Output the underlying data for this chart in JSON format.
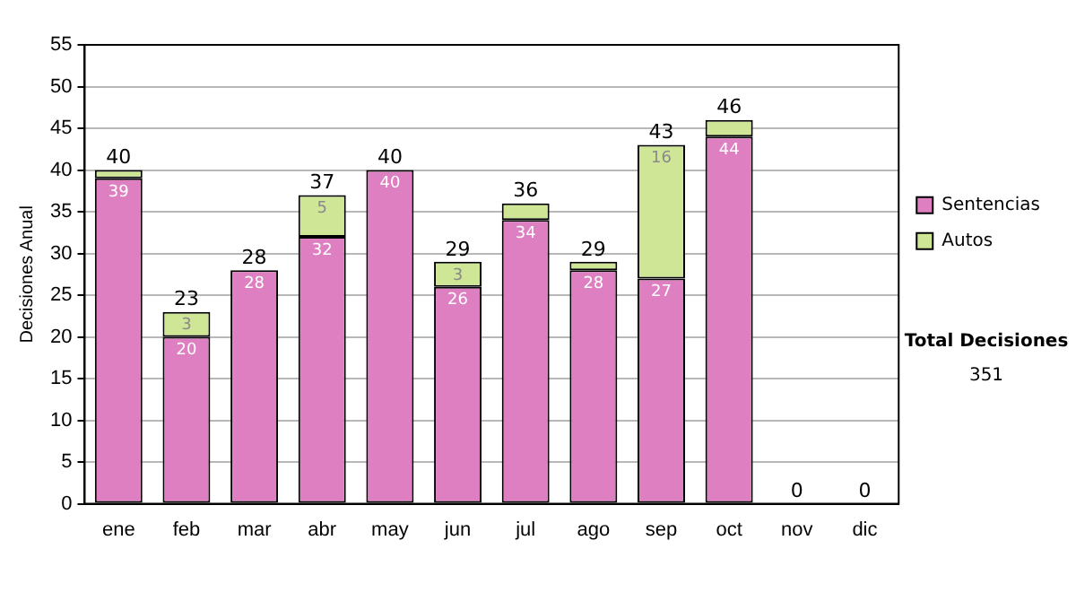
{
  "chart_data": {
    "type": "bar",
    "stacked": true,
    "ylabel": "Decisiones Anual",
    "categories": [
      "ene",
      "feb",
      "mar",
      "abr",
      "may",
      "jun",
      "jul",
      "ago",
      "sep",
      "oct",
      "nov",
      "dic"
    ],
    "series": [
      {
        "name": "Sentencias",
        "color": "#dd7fc0",
        "values": [
          39,
          20,
          28,
          32,
          40,
          26,
          34,
          28,
          27,
          44,
          0,
          0
        ],
        "value_labels": [
          "39",
          "20",
          "28",
          "32",
          "40",
          "26",
          "34",
          "28",
          "27",
          "44",
          null,
          null
        ]
      },
      {
        "name": "Autos",
        "color": "#cfe697",
        "values": [
          1,
          3,
          0,
          5,
          0,
          3,
          2,
          1,
          16,
          2,
          0,
          0
        ],
        "value_labels": [
          null,
          "3",
          null,
          "5",
          null,
          "3",
          null,
          null,
          "16",
          null,
          null,
          null
        ]
      }
    ],
    "totals": [
      "40",
      "23",
      "28",
      "37",
      "40",
      "29",
      "36",
      "29",
      "43",
      "46",
      "0",
      "0"
    ],
    "ylim": [
      0,
      55
    ],
    "yticks": [
      0,
      5,
      10,
      15,
      20,
      25,
      30,
      35,
      40,
      45,
      50,
      55
    ],
    "grid": "y",
    "legend": "right top",
    "annotations": [
      "Total Decisiones",
      "351"
    ]
  }
}
